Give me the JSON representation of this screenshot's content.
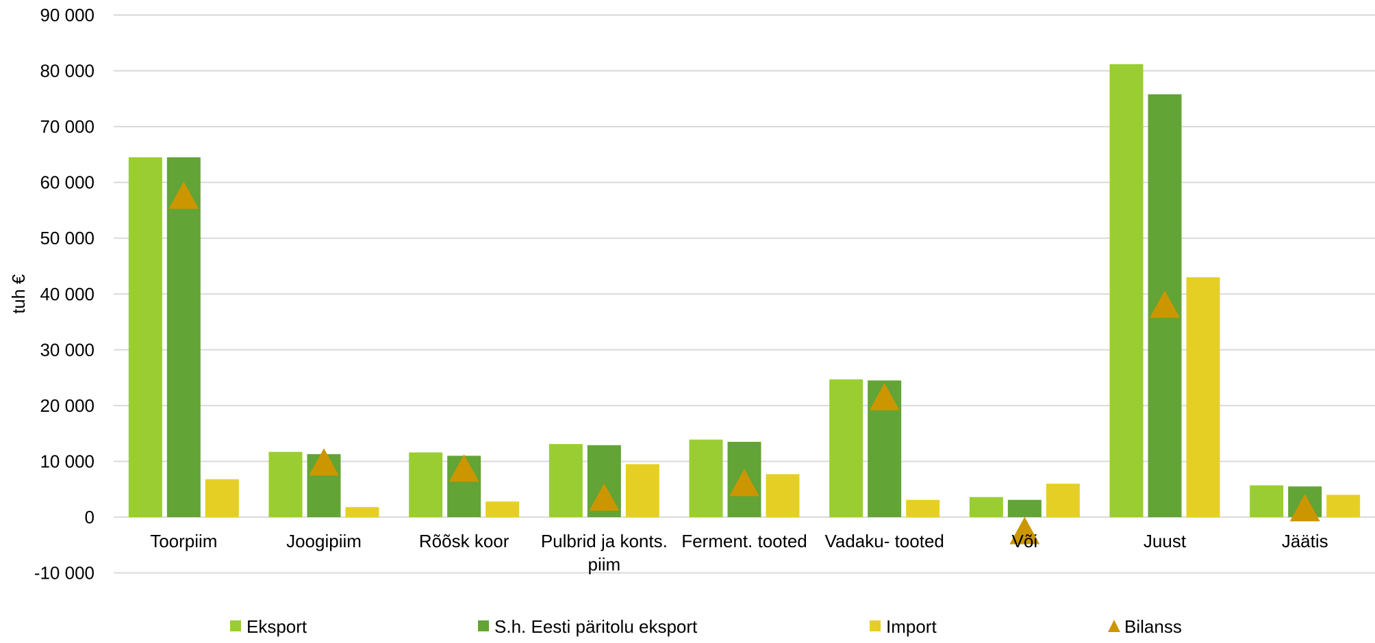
{
  "chart_data": {
    "type": "bar",
    "title": "",
    "xlabel": "",
    "ylabel": "tuh €",
    "ylim": [
      -10000,
      90000
    ],
    "yticks": [
      -10000,
      0,
      10000,
      20000,
      30000,
      40000,
      50000,
      60000,
      70000,
      80000,
      90000
    ],
    "ytick_labels": [
      "-10 000",
      "0",
      "10 000",
      "20 000",
      "30 000",
      "40 000",
      "50 000",
      "60 000",
      "70 000",
      "80 000",
      "90 000"
    ],
    "grid": true,
    "legend_position": "bottom",
    "categories": [
      [
        "Toorpiim"
      ],
      [
        "Joogipiim"
      ],
      [
        "Rõõsk koor"
      ],
      [
        "Pulbrid ja konts.",
        "piim"
      ],
      [
        "Ferment. tooted"
      ],
      [
        "Vadaku- tooted"
      ],
      [
        "Või"
      ],
      [
        "Juust"
      ],
      [
        "Jäätis"
      ]
    ],
    "series": [
      {
        "name": "Eksport",
        "kind": "bar",
        "color": "#9ACD32",
        "values": [
          64500,
          11700,
          11600,
          13100,
          13900,
          24700,
          3600,
          81200,
          5700
        ]
      },
      {
        "name": "S.h. Eesti päritolu eksport",
        "kind": "bar",
        "color": "#62A435",
        "values": [
          64500,
          11300,
          11000,
          12900,
          13500,
          24500,
          3100,
          75800,
          5500
        ]
      },
      {
        "name": "Import",
        "kind": "bar",
        "color": "#E6CF24",
        "values": [
          6800,
          1800,
          2800,
          9500,
          7700,
          3100,
          6000,
          43000,
          4000
        ]
      },
      {
        "name": "Bilanss",
        "kind": "marker",
        "color": "#CC9600",
        "values": [
          57700,
          9900,
          8800,
          3600,
          6200,
          21600,
          -2400,
          38200,
          1700
        ]
      }
    ]
  }
}
